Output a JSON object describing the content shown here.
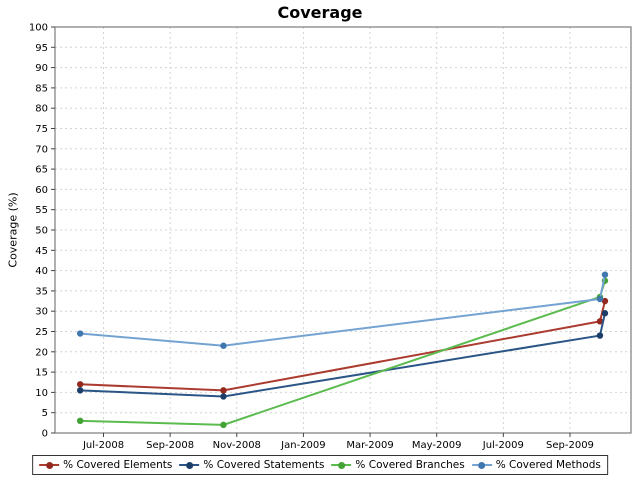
{
  "chart_data": {
    "type": "line",
    "title": "Coverage",
    "ylabel": "Coverage (%)",
    "xlabel": "",
    "ylim": [
      0,
      100
    ],
    "grid": true,
    "legend_position": "bottom",
    "y_ticks": [
      0,
      5,
      10,
      15,
      20,
      25,
      30,
      35,
      40,
      45,
      50,
      55,
      60,
      65,
      70,
      75,
      80,
      85,
      90,
      95,
      100
    ],
    "x_unit": "months since Jul-2008",
    "x_ticks": [
      {
        "t": 0,
        "label": "Jul-2008"
      },
      {
        "t": 2,
        "label": "Sep-2008"
      },
      {
        "t": 4,
        "label": "Nov-2008"
      },
      {
        "t": 6,
        "label": "Jan-2009"
      },
      {
        "t": 8,
        "label": "Mar-2009"
      },
      {
        "t": 10,
        "label": "May-2009"
      },
      {
        "t": 12,
        "label": "Jul-2009"
      },
      {
        "t": 14,
        "label": "Sep-2009"
      }
    ],
    "series": [
      {
        "name": "% Covered Elements",
        "color": "#AC3B2F",
        "dot_color": "#93291F",
        "points": [
          [
            -0.7,
            12
          ],
          [
            3.6,
            10.5
          ],
          [
            14.9,
            27.5
          ],
          [
            15.05,
            32.5
          ]
        ]
      },
      {
        "name": "% Covered Statements",
        "color": "#2A5586",
        "dot_color": "#1C3F69",
        "points": [
          [
            -0.7,
            10.5
          ],
          [
            3.6,
            9
          ],
          [
            14.9,
            24
          ],
          [
            15.05,
            29.5
          ]
        ]
      },
      {
        "name": "% Covered Branches",
        "color": "#5BBB4E",
        "dot_color": "#43A335",
        "points": [
          [
            -0.7,
            3
          ],
          [
            3.6,
            2
          ],
          [
            14.9,
            33.5
          ],
          [
            15.05,
            37.5
          ]
        ]
      },
      {
        "name": "% Covered Methods",
        "color": "#74A3D2",
        "dot_color": "#4177AF",
        "points": [
          [
            -0.7,
            24.5
          ],
          [
            3.6,
            21.5
          ],
          [
            14.9,
            33
          ],
          [
            15.05,
            39
          ]
        ]
      }
    ],
    "style": {
      "grid_color": "#D4D4D4",
      "border_color": "#858585",
      "tick_color": "#444444",
      "text_color": "#000000"
    }
  }
}
